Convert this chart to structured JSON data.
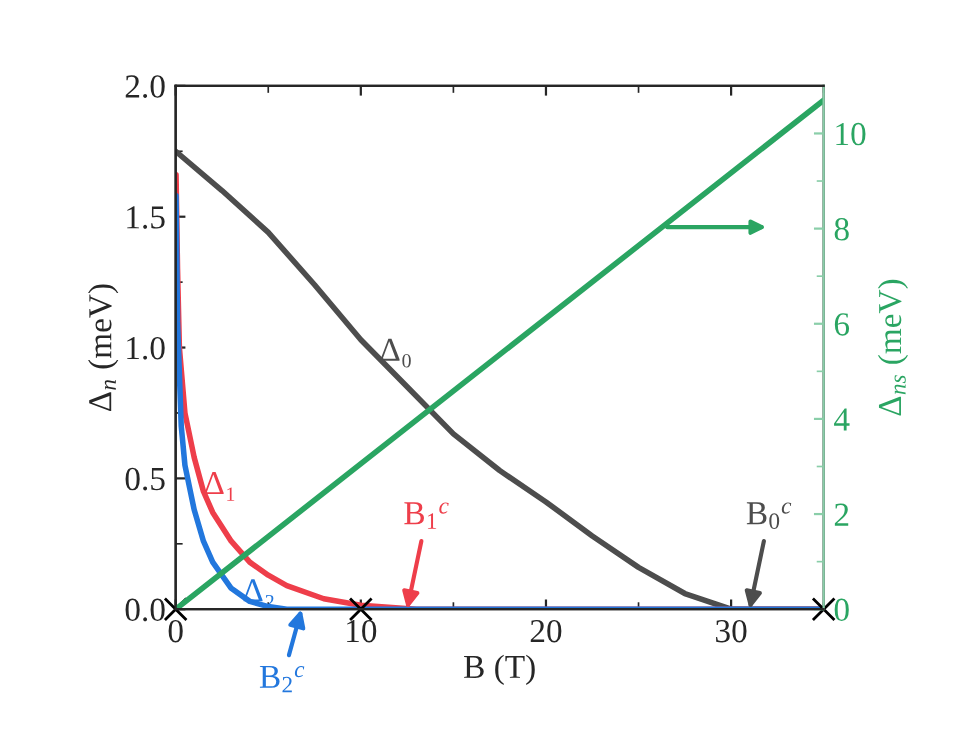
{
  "chart_data": {
    "type": "line",
    "xlabel": "B (T)",
    "ylabel": "Δ$_{n}$ (meV)",
    "y2label": "Δ$_{ns}$ (meV)",
    "xlim": [
      0,
      35
    ],
    "xticks": [
      0,
      10,
      20,
      30
    ],
    "ylim": [
      0,
      2.0
    ],
    "yticks": [
      {
        "value": 0,
        "label": "0.0"
      },
      {
        "value": 0.5,
        "label": "0.5"
      },
      {
        "value": 1.0,
        "label": "1.0"
      },
      {
        "value": 1.5,
        "label": "1.5"
      },
      {
        "value": 2.0,
        "label": "2.0"
      }
    ],
    "y2lim": [
      0,
      11
    ],
    "y2ticks": [
      0,
      2,
      4,
      6,
      8,
      10
    ],
    "grid": false,
    "legend": false,
    "series": [
      {
        "color": "#4d4d4d",
        "x": [
          0,
          2.5,
          5,
          7.5,
          10,
          12.5,
          15,
          17.5,
          20,
          22.5,
          25,
          27.5,
          30,
          35
        ],
        "values": [
          1.75,
          1.6,
          1.44,
          1.24,
          1.03,
          0.85,
          0.67,
          0.53,
          0.41,
          0.28,
          0.16,
          0.06,
          0,
          0
        ]
      },
      {
        "color": "#ee3e4a",
        "x": [
          0.02,
          0.1,
          0.2,
          0.5,
          1,
          1.5,
          2,
          3,
          4,
          5,
          6,
          8,
          10,
          13,
          35
        ],
        "values": [
          1.66,
          1.3,
          1.0,
          0.75,
          0.58,
          0.45,
          0.37,
          0.26,
          0.18,
          0.13,
          0.09,
          0.04,
          0.015,
          0,
          0
        ]
      },
      {
        "color": "#2277dd",
        "x": [
          0.02,
          0.1,
          0.3,
          0.5,
          1,
          1.5,
          2,
          3,
          4,
          5,
          6,
          35
        ],
        "values": [
          1.58,
          1.1,
          0.7,
          0.55,
          0.38,
          0.26,
          0.18,
          0.08,
          0.03,
          0.01,
          0,
          0
        ]
      },
      {
        "color": "#2aa562",
        "axis": "y2",
        "x": [
          0,
          35
        ],
        "values": [
          0,
          10.7
        ]
      },
      {
        "type": "scatter",
        "marker": "cross",
        "color": "#000000",
        "x": [
          0,
          10,
          35
        ],
        "values": [
          0,
          0,
          0
        ]
      }
    ],
    "annotations": [
      {
        "text": "Δ₀",
        "x": 11,
        "y": 0.95
      },
      {
        "text": "Δ₁",
        "x": 1.5,
        "y": 0.44
      },
      {
        "text": "Δ₂",
        "x": 3.6,
        "y": 0.03
      },
      {
        "text": "B$_{1}$$^{c}$",
        "x": 12.5,
        "y": 0
      },
      {
        "text": "B$_{2}$$^{c}$",
        "x": 6.8,
        "y": 0
      },
      {
        "text": "B$_{0}$$^{c}$",
        "x": 31,
        "y": 0
      }
    ]
  }
}
